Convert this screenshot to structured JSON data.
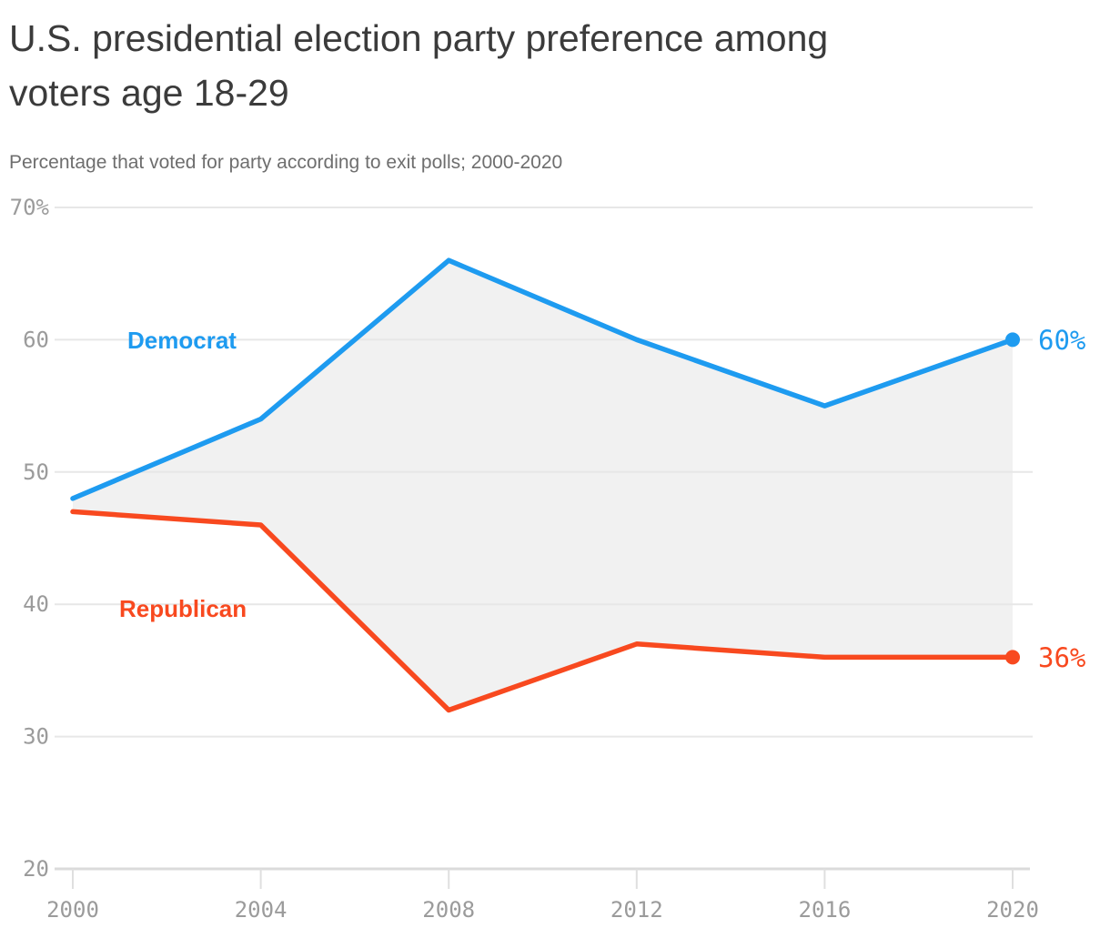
{
  "header": {
    "title_lines": [
      "U.S. presidential election party preference among",
      "voters age 18-29"
    ],
    "subtitle": "Percentage that voted for party according to exit polls; 2000-2020"
  },
  "chart_data": {
    "type": "line",
    "title": "U.S. presidential election party preference among voters age 18-29",
    "subtitle": "Percentage that voted for party according to exit polls; 2000-2020",
    "x": [
      2000,
      2004,
      2008,
      2012,
      2016,
      2020
    ],
    "x_tick_labels": [
      "2000",
      "2004",
      "2008",
      "2012",
      "2016",
      "2020"
    ],
    "y_ticks": [
      70,
      60,
      50,
      40,
      30,
      20
    ],
    "y_tick_labels": [
      "70%",
      "60",
      "50",
      "40",
      "30",
      "20"
    ],
    "ylim": [
      20,
      70
    ],
    "grid": "horizontal",
    "legend_position": "inline-labels-on-chart",
    "fill_between_series": true,
    "series": [
      {
        "name": "Democrat",
        "values": [
          48,
          54,
          66,
          60,
          55,
          60
        ],
        "end_label": "60%"
      },
      {
        "name": "Republican",
        "values": [
          47,
          46,
          32,
          37,
          36,
          36
        ],
        "end_label": "36%"
      }
    ]
  },
  "colors": {
    "democrat": "#1E9BF0",
    "republican": "#F8491F",
    "fill_between": "#F1F1F1",
    "grid": "#E7E7E7",
    "axis_line": "#DBDBDB",
    "tick": "#DFDFDF",
    "tick_text": "#9B9B9B",
    "title_text": "#3B3B3B",
    "subtitle_text": "#6E6E6E"
  }
}
